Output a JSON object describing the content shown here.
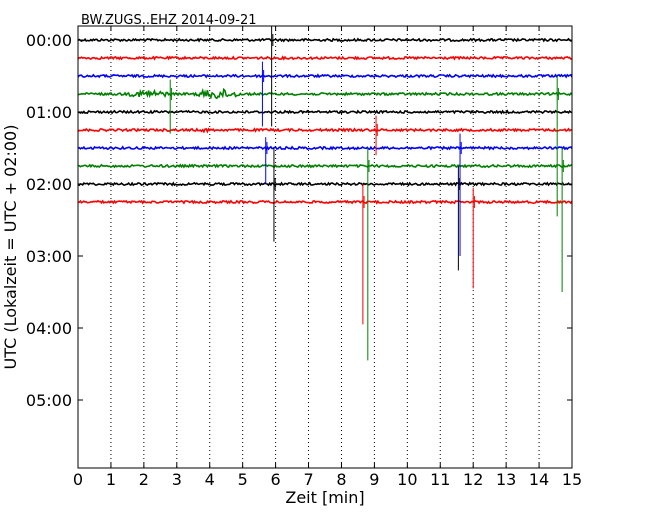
{
  "chart_data": {
    "type": "line",
    "title": "BW.ZUGS..EHZ 2014-09-21",
    "xlabel": "Zeit  [min]",
    "ylabel": "UTC (Lokalzeit = UTC + 02:00)",
    "xlim": [
      0,
      15
    ],
    "ylim": [
      0,
      6.25
    ],
    "x_ticks": [
      0,
      1,
      2,
      3,
      4,
      5,
      6,
      7,
      8,
      9,
      10,
      11,
      12,
      13,
      14,
      15
    ],
    "x_tick_labels": [
      "0",
      "1",
      "2",
      "3",
      "4",
      "5",
      "6",
      "7",
      "8",
      "9",
      "10",
      "11",
      "12",
      "13",
      "14",
      "15"
    ],
    "y_ticks": [
      0,
      1,
      2,
      3,
      4,
      5
    ],
    "y_tick_labels": [
      "00:00",
      "01:00",
      "02:00",
      "03:00",
      "04:00",
      "05:00"
    ],
    "grid": "vertical dotted",
    "trace_spacing_hours": 0.25,
    "trace_colors": [
      "#000000",
      "#ff0000",
      "#0000ff",
      "#008000"
    ],
    "series": [
      {
        "offset": 0.0,
        "color": "#000000"
      },
      {
        "offset": 0.25,
        "color": "#ff0000"
      },
      {
        "offset": 0.5,
        "color": "#0000ff"
      },
      {
        "offset": 0.75,
        "color": "#008000"
      },
      {
        "offset": 1.0,
        "color": "#000000"
      },
      {
        "offset": 1.25,
        "color": "#ff0000"
      },
      {
        "offset": 1.5,
        "color": "#0000ff"
      },
      {
        "offset": 1.75,
        "color": "#008000"
      },
      {
        "offset": 2.0,
        "color": "#000000"
      },
      {
        "offset": 2.25,
        "color": "#ff0000"
      }
    ],
    "spikes": [
      {
        "x": 2.8,
        "offset": 0.75,
        "up": 0.2,
        "down": 0.55
      },
      {
        "x": 5.6,
        "offset": 0.5,
        "up": 0.2,
        "down": 0.7
      },
      {
        "x": 5.7,
        "offset": 1.5,
        "up": 0.15,
        "down": 0.5
      },
      {
        "x": 5.88,
        "offset": 0.0,
        "up": 0.25,
        "down": 1.2
      },
      {
        "x": 5.95,
        "offset": 2.0,
        "up": 0.5,
        "down": 0.8
      },
      {
        "x": 8.65,
        "offset": 2.25,
        "up": 0.25,
        "down": 1.7
      },
      {
        "x": 8.8,
        "offset": 1.75,
        "up": 0.25,
        "down": 2.7
      },
      {
        "x": 9.05,
        "offset": 1.25,
        "up": 0.2,
        "down": 0.35
      },
      {
        "x": 11.55,
        "offset": 2.0,
        "up": 0.25,
        "down": 1.2
      },
      {
        "x": 11.6,
        "offset": 1.5,
        "up": 0.2,
        "down": 1.5
      },
      {
        "x": 12.0,
        "offset": 2.25,
        "up": 0.2,
        "down": 1.2
      },
      {
        "x": 14.55,
        "offset": 0.75,
        "up": 0.25,
        "down": 1.7
      },
      {
        "x": 14.7,
        "offset": 1.75,
        "up": 0.25,
        "down": 1.75
      }
    ],
    "bursts": [
      {
        "offset": 0.75,
        "x_start": 1.5,
        "x_end": 2.8,
        "amp": 0.06
      },
      {
        "offset": 0.75,
        "x_start": 3.6,
        "x_end": 4.9,
        "amp": 0.08
      },
      {
        "offset": 1.25,
        "x_start": 3.6,
        "x_end": 4.1,
        "amp": 0.03
      }
    ]
  }
}
